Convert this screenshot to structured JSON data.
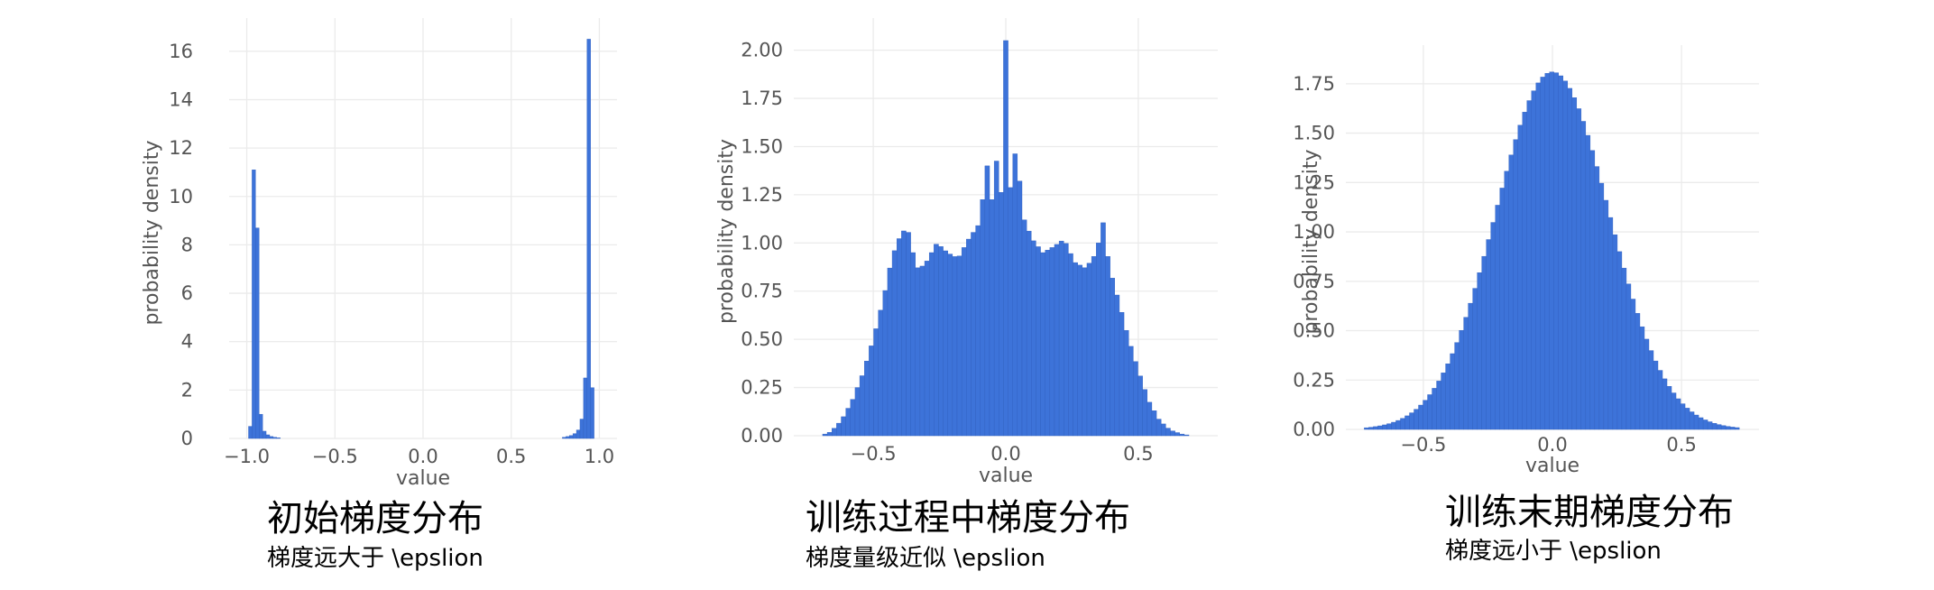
{
  "chart_data": [
    {
      "type": "bar",
      "title": "初始梯度分布",
      "subtitle": "梯度远大于 \\epslion",
      "xlabel": "value",
      "ylabel": "probability density",
      "xlim": [
        -1.1,
        1.1
      ],
      "ylim": [
        0,
        17
      ],
      "xticks": [
        -1.0,
        -0.5,
        0.0,
        0.5,
        1.0
      ],
      "xtick_labels": [
        "−1.0",
        "−0.5",
        "0.0",
        "0.5",
        "1.0"
      ],
      "yticks": [
        0,
        2,
        4,
        6,
        8,
        10,
        12,
        14,
        16
      ],
      "ytick_labels": [
        "0",
        "2",
        "4",
        "6",
        "8",
        "10",
        "12",
        "14",
        "16"
      ],
      "grid": true,
      "bin_width": 0.02,
      "bins": [
        {
          "x": -0.98,
          "y": 0.5
        },
        {
          "x": -0.96,
          "y": 11.1
        },
        {
          "x": -0.94,
          "y": 8.7
        },
        {
          "x": -0.92,
          "y": 1.0
        },
        {
          "x": -0.9,
          "y": 0.3
        },
        {
          "x": -0.88,
          "y": 0.15
        },
        {
          "x": -0.86,
          "y": 0.08
        },
        {
          "x": -0.84,
          "y": 0.05
        },
        {
          "x": -0.82,
          "y": 0.03
        },
        {
          "x": 0.8,
          "y": 0.05
        },
        {
          "x": 0.82,
          "y": 0.08
        },
        {
          "x": 0.84,
          "y": 0.12
        },
        {
          "x": 0.86,
          "y": 0.2
        },
        {
          "x": 0.88,
          "y": 0.35
        },
        {
          "x": 0.9,
          "y": 0.8
        },
        {
          "x": 0.92,
          "y": 2.5
        },
        {
          "x": 0.94,
          "y": 16.5
        },
        {
          "x": 0.96,
          "y": 2.1
        }
      ]
    },
    {
      "type": "bar",
      "title": "训练过程中梯度分布",
      "subtitle": "梯度量级近似 \\epslion",
      "xlabel": "value",
      "ylabel": "probability density",
      "xlim": [
        -0.8,
        0.8
      ],
      "ylim": [
        0,
        2.12
      ],
      "xticks": [
        -0.5,
        0.0,
        0.5
      ],
      "xtick_labels": [
        "−0.5",
        "0.0",
        "0.5"
      ],
      "yticks": [
        0,
        0.25,
        0.5,
        0.75,
        1.0,
        1.25,
        1.5,
        1.75,
        2.0
      ],
      "ytick_labels": [
        "0.00",
        "0.25",
        "0.50",
        "0.75",
        "1.00",
        "1.25",
        "1.50",
        "1.75",
        "2.00"
      ],
      "grid": true,
      "bin_width": 0.0175,
      "x": [
        -0.7,
        -0.66,
        -0.62,
        -0.58,
        -0.54,
        -0.5,
        -0.46,
        -0.43,
        -0.41,
        -0.39,
        -0.37,
        -0.35,
        -0.33,
        -0.3,
        -0.26,
        -0.22,
        -0.18,
        -0.14,
        -0.1,
        -0.07,
        -0.05,
        -0.03,
        -0.02,
        -0.01,
        0.0,
        0.01,
        0.02,
        0.03,
        0.05,
        0.07,
        0.1,
        0.14,
        0.18,
        0.22,
        0.26,
        0.3,
        0.33,
        0.35,
        0.37,
        0.38,
        0.39,
        0.41,
        0.43,
        0.46,
        0.5,
        0.54,
        0.58,
        0.62,
        0.66,
        0.7
      ],
      "y": [
        0.0,
        0.02,
        0.08,
        0.18,
        0.32,
        0.5,
        0.72,
        0.92,
        1.0,
        1.06,
        1.07,
        0.95,
        0.86,
        0.9,
        1.0,
        0.95,
        0.92,
        1.02,
        1.1,
        1.4,
        1.2,
        1.5,
        1.35,
        1.0,
        2.05,
        1.55,
        1.2,
        1.5,
        1.35,
        1.12,
        1.02,
        0.95,
        0.98,
        1.02,
        0.9,
        0.87,
        0.92,
        1.0,
        1.12,
        0.98,
        0.88,
        0.78,
        0.68,
        0.52,
        0.34,
        0.18,
        0.08,
        0.03,
        0.01,
        0.0
      ]
    },
    {
      "type": "bar",
      "title": "训练末期梯度分布",
      "subtitle": "梯度远小于 \\epslion",
      "xlabel": "value",
      "ylabel": "probability density",
      "xlim": [
        -0.8,
        0.8
      ],
      "ylim": [
        0,
        1.9
      ],
      "xticks": [
        -0.5,
        0.0,
        0.5
      ],
      "xtick_labels": [
        "−0.5",
        "0.0",
        "0.5"
      ],
      "yticks": [
        0,
        0.25,
        0.5,
        0.75,
        1.0,
        1.25,
        1.5,
        1.75
      ],
      "ytick_labels": [
        "0.00",
        "0.25",
        "0.50",
        "0.75",
        "1.00",
        "1.25",
        "1.50",
        "1.75"
      ],
      "grid": true,
      "bin_width": 0.0175,
      "distribution": {
        "mean": 0.0,
        "std": 0.22,
        "peak": 1.81,
        "range": [
          -0.72,
          0.72
        ]
      }
    }
  ]
}
